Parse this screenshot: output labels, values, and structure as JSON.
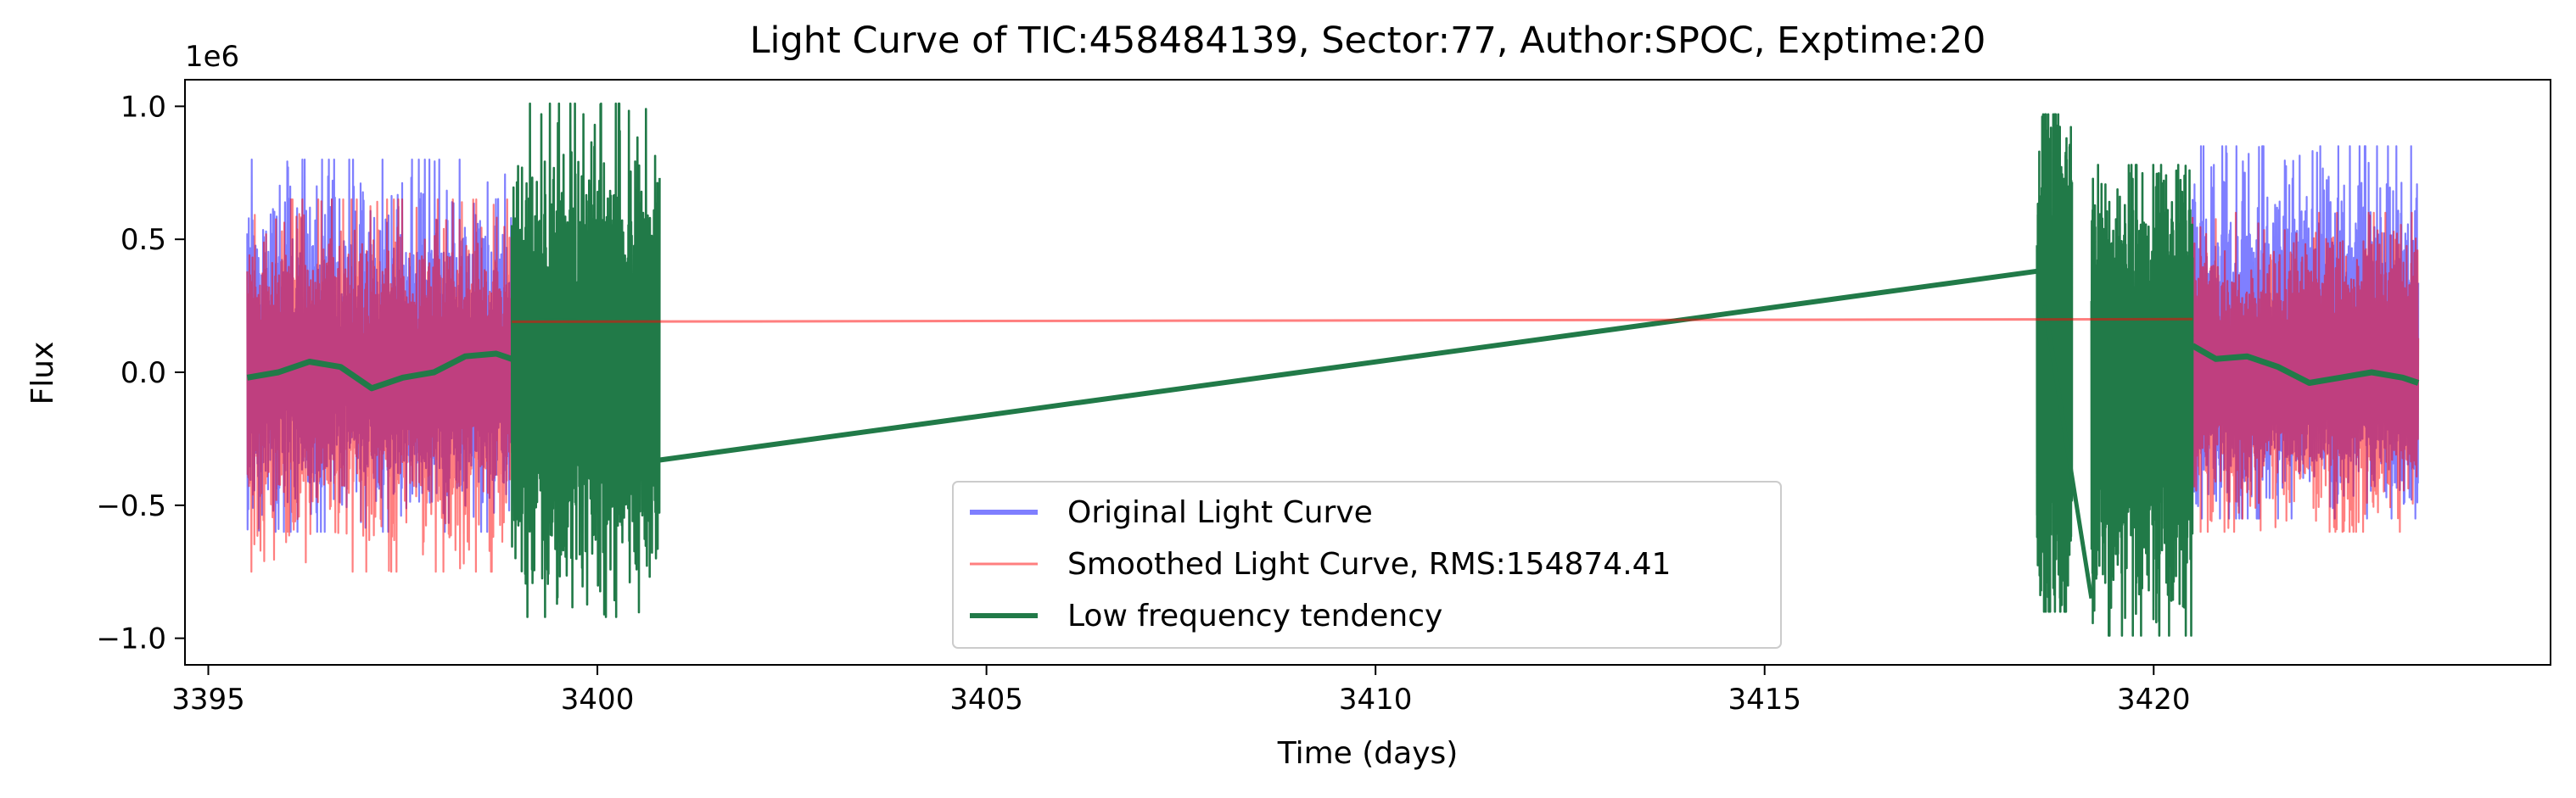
{
  "chart_data": {
    "type": "line",
    "title": "Light Curve of TIC:458484139, Sector:77, Author:SPOC, Exptime:20",
    "xlabel": "Time (days)",
    "ylabel": "Flux",
    "y_offset_label": "1e6",
    "xlim": [
      3394.7,
      3425.1
    ],
    "ylim": [
      -1.1,
      1.1
    ],
    "y_scale": 1000000,
    "x_ticks": [
      3395,
      3400,
      3405,
      3410,
      3415,
      3420
    ],
    "x_tick_labels": [
      "3395",
      "3400",
      "3405",
      "3410",
      "3415",
      "3420"
    ],
    "y_ticks": [
      -1.0,
      -0.5,
      0.0,
      0.5,
      1.0
    ],
    "y_tick_labels": [
      "−1.0",
      "−0.5",
      "0.0",
      "0.5",
      "1.0"
    ],
    "grid": false,
    "legend_position": "lower center",
    "series": [
      {
        "name": "Original Light Curve",
        "color": "#0000ff",
        "opacity": 0.5,
        "style": "noisy band",
        "segments": [
          {
            "x_start": 3395.5,
            "x_end": 3398.9,
            "ymin": -0.6,
            "ymax": 0.8
          },
          {
            "x_start": 3420.5,
            "x_end": 3423.4,
            "ymin": -0.55,
            "ymax": 0.85
          }
        ]
      },
      {
        "name": "Smoothed Light Curve, RMS:154874.41",
        "color": "#ff0000",
        "opacity": 0.5,
        "style": "noisy band",
        "segments": [
          {
            "x_start": 3395.5,
            "x_end": 3398.9,
            "ymin": -0.75,
            "ymax": 0.65
          },
          {
            "x_start": 3420.5,
            "x_end": 3423.4,
            "ymin": -0.6,
            "ymax": 0.6
          }
        ],
        "constant_line": {
          "x": [
            3398.9,
            3420.5
          ],
          "y": [
            0.19,
            0.2
          ]
        }
      },
      {
        "name": "Low frequency tendency",
        "color": "#217a48",
        "opacity": 1.0,
        "trend_left": {
          "x": [
            3395.5,
            3395.9,
            3396.3,
            3396.7,
            3397.1,
            3397.5,
            3397.9,
            3398.3,
            3398.7,
            3398.9
          ],
          "y": [
            -0.02,
            0.0,
            0.04,
            0.02,
            -0.06,
            -0.02,
            0.0,
            0.06,
            0.07,
            0.05
          ]
        },
        "trend_right": {
          "x": [
            3420.5,
            3420.8,
            3421.2,
            3421.6,
            3422.0,
            3422.4,
            3422.8,
            3423.2,
            3423.4
          ],
          "y": [
            0.1,
            0.05,
            0.06,
            0.02,
            -0.04,
            -0.02,
            0.0,
            -0.02,
            -0.04
          ]
        },
        "dense_segments": [
          {
            "x_start": 3398.9,
            "x_end": 3400.8,
            "ymin": -0.92,
            "ymax": 1.01
          },
          {
            "x_start": 3418.5,
            "x_end": 3418.95,
            "ymin": -0.9,
            "ymax": 0.97
          },
          {
            "x_start": 3419.2,
            "x_end": 3420.5,
            "ymin": -0.99,
            "ymax": 0.78
          }
        ],
        "connector": {
          "x": [
            3400.8,
            3418.5
          ],
          "y": [
            -0.33,
            0.38
          ]
        },
        "connector2": {
          "x": [
            3418.6,
            3419.2
          ],
          "y": [
            0.25,
            -0.85
          ]
        }
      }
    ]
  }
}
